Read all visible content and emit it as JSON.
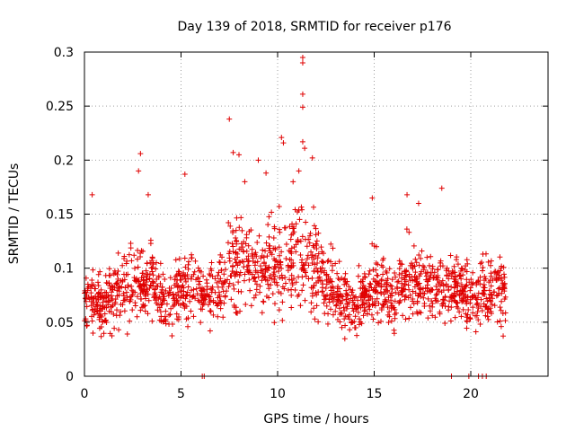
{
  "chart_data": {
    "type": "scatter",
    "title": "Day 139 of 2018, SRMTID for receiver p176",
    "xlabel": "GPS time / hours",
    "ylabel": "SRMTID / TECUs",
    "xlim": [
      0,
      24
    ],
    "ylim": [
      0,
      0.3
    ],
    "x_ticks": [
      0,
      5,
      10,
      15,
      20
    ],
    "x_tick_labels": [
      "0",
      "5",
      "10",
      "15",
      "20"
    ],
    "y_ticks": [
      0,
      0.05,
      0.1,
      0.15,
      0.2,
      0.25,
      0.3
    ],
    "y_tick_labels": [
      "0",
      "0.05",
      "0.1",
      "0.15",
      "0.2",
      "0.25",
      "0.3"
    ],
    "grid": true,
    "marker": "+",
    "color": "#e00000",
    "data_span_hours": [
      0,
      21.8
    ],
    "density_profile": [
      [
        0.0,
        0.068,
        0.02
      ],
      [
        0.5,
        0.068,
        0.02
      ],
      [
        1.0,
        0.066,
        0.02
      ],
      [
        1.5,
        0.074,
        0.022
      ],
      [
        2.0,
        0.082,
        0.024
      ],
      [
        2.5,
        0.085,
        0.024
      ],
      [
        3.0,
        0.087,
        0.024
      ],
      [
        3.5,
        0.085,
        0.022
      ],
      [
        4.0,
        0.072,
        0.02
      ],
      [
        4.5,
        0.064,
        0.018
      ],
      [
        5.0,
        0.082,
        0.022
      ],
      [
        5.5,
        0.088,
        0.024
      ],
      [
        6.0,
        0.07,
        0.02
      ],
      [
        6.5,
        0.073,
        0.02
      ],
      [
        7.0,
        0.085,
        0.024
      ],
      [
        7.5,
        0.102,
        0.028
      ],
      [
        8.0,
        0.113,
        0.03
      ],
      [
        8.5,
        0.108,
        0.028
      ],
      [
        9.0,
        0.1,
        0.028
      ],
      [
        9.5,
        0.103,
        0.028
      ],
      [
        10.0,
        0.106,
        0.03
      ],
      [
        10.5,
        0.11,
        0.03
      ],
      [
        11.0,
        0.112,
        0.034
      ],
      [
        11.5,
        0.11,
        0.032
      ],
      [
        12.0,
        0.098,
        0.03
      ],
      [
        12.5,
        0.085,
        0.022
      ],
      [
        13.0,
        0.08,
        0.02
      ],
      [
        13.5,
        0.066,
        0.02
      ],
      [
        14.0,
        0.062,
        0.02
      ],
      [
        14.5,
        0.076,
        0.022
      ],
      [
        15.0,
        0.082,
        0.022
      ],
      [
        15.5,
        0.075,
        0.02
      ],
      [
        16.0,
        0.07,
        0.02
      ],
      [
        16.5,
        0.085,
        0.024
      ],
      [
        17.0,
        0.092,
        0.024
      ],
      [
        17.5,
        0.09,
        0.024
      ],
      [
        18.0,
        0.083,
        0.022
      ],
      [
        18.5,
        0.08,
        0.022
      ],
      [
        19.0,
        0.085,
        0.022
      ],
      [
        19.5,
        0.078,
        0.022
      ],
      [
        20.0,
        0.07,
        0.02
      ],
      [
        20.5,
        0.078,
        0.022
      ],
      [
        21.0,
        0.08,
        0.022
      ],
      [
        21.5,
        0.078,
        0.022
      ],
      [
        21.8,
        0.075,
        0.022
      ]
    ],
    "notable_points": [
      [
        11.3,
        0.295
      ],
      [
        11.3,
        0.29
      ],
      [
        11.3,
        0.261
      ],
      [
        11.3,
        0.249
      ],
      [
        7.5,
        0.238
      ],
      [
        10.2,
        0.221
      ],
      [
        10.3,
        0.216
      ],
      [
        11.3,
        0.217
      ],
      [
        11.4,
        0.211
      ],
      [
        2.9,
        0.206
      ],
      [
        11.8,
        0.202
      ],
      [
        8.0,
        0.205
      ],
      [
        9.0,
        0.2
      ],
      [
        9.4,
        0.188
      ],
      [
        5.2,
        0.187
      ],
      [
        2.8,
        0.19
      ],
      [
        11.1,
        0.19
      ],
      [
        8.3,
        0.18
      ],
      [
        3.3,
        0.168
      ],
      [
        10.8,
        0.18
      ],
      [
        0.4,
        0.168
      ],
      [
        18.5,
        0.174
      ],
      [
        16.7,
        0.168
      ],
      [
        14.9,
        0.165
      ],
      [
        17.3,
        0.16
      ],
      [
        7.7,
        0.207
      ]
    ],
    "zero_points_x": [
      6.1,
      6.2,
      19.0,
      19.9,
      20.4,
      20.6,
      20.8
    ]
  }
}
